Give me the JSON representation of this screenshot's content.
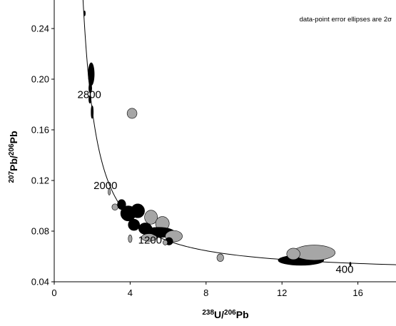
{
  "chart_data": {
    "type": "scatter",
    "subtype": "Tera-Wasserburg concordia with data-point error ellipses",
    "title": "",
    "xlabel": {
      "sup": "238",
      "main": "U/",
      "sup2": "206",
      "main2": "Pb"
    },
    "ylabel": {
      "sup": "207",
      "main": "Pb/",
      "sup2": "206",
      "main2": "Pb"
    },
    "xlim": [
      0,
      18
    ],
    "ylim": [
      0.04,
      0.26
    ],
    "xticks": [
      0,
      4,
      8,
      12,
      16
    ],
    "yticks": [
      0.04,
      0.08,
      0.12,
      0.16,
      0.2,
      0.24
    ],
    "xtick_labels": [
      "0",
      "4",
      "8",
      "12",
      "16"
    ],
    "ytick_labels": [
      "0.04",
      "0.08",
      "0.12",
      "0.16",
      "0.20",
      "0.24"
    ],
    "grid": false,
    "annotation": "data-point error ellipses are 2σ",
    "concordia_age_labels": [
      {
        "text": "2800",
        "x": 1.85,
        "y": 0.188
      },
      {
        "text": "2000",
        "x": 2.7,
        "y": 0.116
      },
      {
        "text": "1200",
        "x": 5.05,
        "y": 0.073
      },
      {
        "text": "400",
        "x": 15.3,
        "y": 0.05
      }
    ],
    "colors": {
      "black": "#000000",
      "grey": "#a6a6a6"
    },
    "ellipses": [
      {
        "x": 1.95,
        "y": 0.204,
        "rx": 0.16,
        "ry": 0.009,
        "fill": "black"
      },
      {
        "x": 1.9,
        "y": 0.193,
        "rx": 0.08,
        "ry": 0.004,
        "fill": "black"
      },
      {
        "x": 1.88,
        "y": 0.184,
        "rx": 0.06,
        "ry": 0.003,
        "fill": "black"
      },
      {
        "x": 2.0,
        "y": 0.174,
        "rx": 0.06,
        "ry": 0.005,
        "fill": "black"
      },
      {
        "x": 1.6,
        "y": 0.252,
        "rx": 0.04,
        "ry": 0.002,
        "fill": "black"
      },
      {
        "x": 4.1,
        "y": 0.173,
        "rx": 0.26,
        "ry": 0.004,
        "fill": "grey"
      },
      {
        "x": 2.9,
        "y": 0.111,
        "rx": 0.06,
        "ry": 0.0025,
        "fill": "grey"
      },
      {
        "x": 3.2,
        "y": 0.099,
        "rx": 0.16,
        "ry": 0.0025,
        "fill": "grey"
      },
      {
        "x": 3.55,
        "y": 0.101,
        "rx": 0.22,
        "ry": 0.004,
        "fill": "black"
      },
      {
        "x": 3.9,
        "y": 0.094,
        "rx": 0.4,
        "ry": 0.006,
        "fill": "black"
      },
      {
        "x": 4.4,
        "y": 0.096,
        "rx": 0.36,
        "ry": 0.0055,
        "fill": "black"
      },
      {
        "x": 5.1,
        "y": 0.091,
        "rx": 0.34,
        "ry": 0.0055,
        "fill": "grey"
      },
      {
        "x": 5.7,
        "y": 0.086,
        "rx": 0.36,
        "ry": 0.0055,
        "fill": "grey"
      },
      {
        "x": 4.2,
        "y": 0.085,
        "rx": 0.3,
        "ry": 0.0045,
        "fill": "black"
      },
      {
        "x": 4.8,
        "y": 0.082,
        "rx": 0.35,
        "ry": 0.0045,
        "fill": "black"
      },
      {
        "x": 5.5,
        "y": 0.079,
        "rx": 0.85,
        "ry": 0.004,
        "fill": "black"
      },
      {
        "x": 6.3,
        "y": 0.076,
        "rx": 0.45,
        "ry": 0.0045,
        "fill": "grey"
      },
      {
        "x": 5.0,
        "y": 0.075,
        "rx": 0.4,
        "ry": 0.003,
        "fill": "grey"
      },
      {
        "x": 6.05,
        "y": 0.072,
        "rx": 0.2,
        "ry": 0.003,
        "fill": "black"
      },
      {
        "x": 5.85,
        "y": 0.071,
        "rx": 0.12,
        "ry": 0.002,
        "fill": "grey"
      },
      {
        "x": 4.0,
        "y": 0.074,
        "rx": 0.1,
        "ry": 0.003,
        "fill": "grey"
      },
      {
        "x": 8.75,
        "y": 0.059,
        "rx": 0.18,
        "ry": 0.003,
        "fill": "grey"
      },
      {
        "x": 12.4,
        "y": 0.058,
        "rx": 0.35,
        "ry": 0.0025,
        "fill": "grey"
      },
      {
        "x": 13.0,
        "y": 0.057,
        "rx": 1.2,
        "ry": 0.004,
        "fill": "black"
      },
      {
        "x": 13.7,
        "y": 0.063,
        "rx": 1.1,
        "ry": 0.006,
        "fill": "grey"
      },
      {
        "x": 12.6,
        "y": 0.062,
        "rx": 0.35,
        "ry": 0.0045,
        "fill": "grey"
      },
      {
        "x": 15.6,
        "y": 0.054,
        "rx": 0.04,
        "ry": 0.0015,
        "fill": "black"
      }
    ]
  }
}
